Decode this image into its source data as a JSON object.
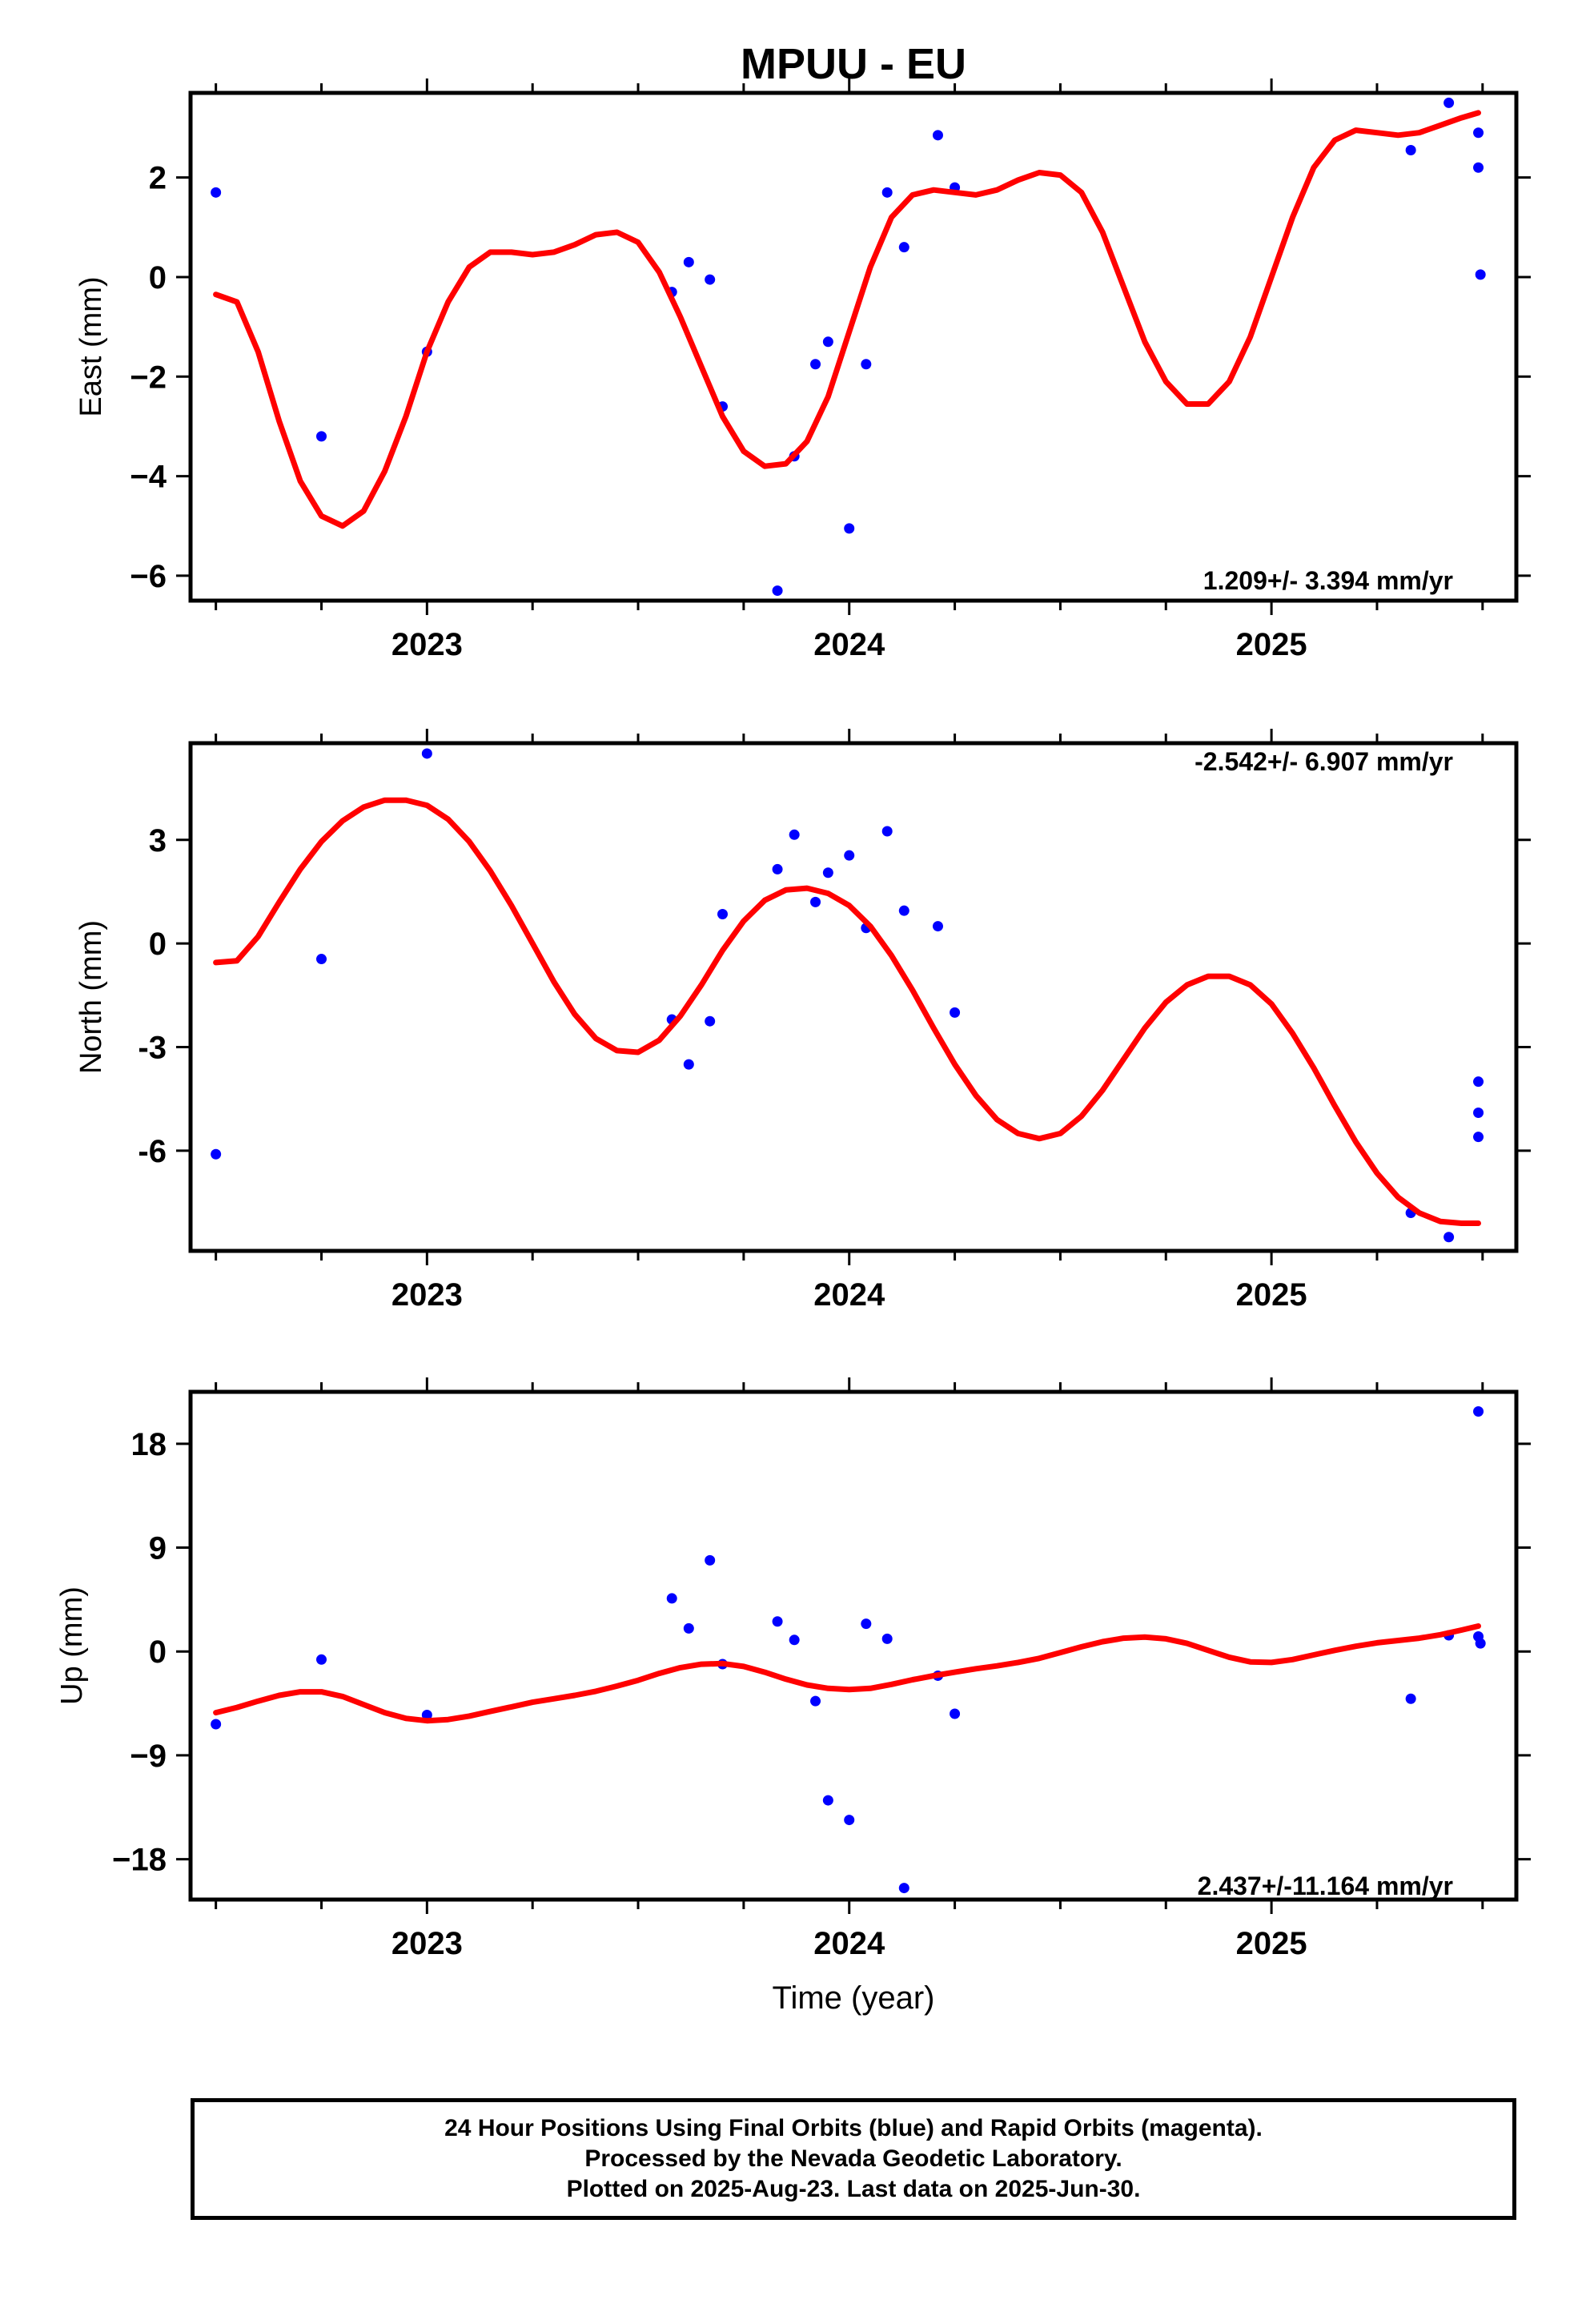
{
  "title": "MPUU - EU",
  "xlabel": "Time (year)",
  "colors": {
    "observed": "#0000ff",
    "model": "#ff0000",
    "frame": "#000000"
  },
  "footer": {
    "line1": "24 Hour Positions Using Final Orbits (blue) and Rapid Orbits (magenta).",
    "line2": "Processed by the Nevada Geodetic Laboratory.",
    "line3": "Plotted on 2025-Aug-23. Last data on 2025-Jun-30."
  },
  "chart_data": [
    {
      "type": "scatter",
      "panel": "east",
      "ylabel": "East (mm)",
      "rate_label": "1.209+/- 3.394 mm/yr",
      "rate_label_position": "bottom-right",
      "xlim": [
        2022.44,
        2025.58
      ],
      "ylim": [
        -6.5,
        3.7
      ],
      "xticks": [
        2023,
        2024,
        2025
      ],
      "xtick_labels": [
        "2023",
        "2024",
        "2025"
      ],
      "yticks": [
        -6,
        -4,
        -2,
        0,
        2
      ],
      "ytick_labels": [
        "−6",
        "−4",
        "−2",
        "0",
        "2"
      ],
      "points": [
        {
          "x": 2022.5,
          "y": 1.7
        },
        {
          "x": 2022.75,
          "y": -3.2
        },
        {
          "x": 2023.0,
          "y": -1.5
        },
        {
          "x": 2023.58,
          "y": -0.3
        },
        {
          "x": 2023.62,
          "y": 0.3
        },
        {
          "x": 2023.67,
          "y": -0.05
        },
        {
          "x": 2023.7,
          "y": -2.6
        },
        {
          "x": 2023.83,
          "y": -6.3
        },
        {
          "x": 2023.87,
          "y": -3.6
        },
        {
          "x": 2023.92,
          "y": -1.75
        },
        {
          "x": 2023.95,
          "y": -1.3
        },
        {
          "x": 2024.0,
          "y": -5.05
        },
        {
          "x": 2024.04,
          "y": -1.75
        },
        {
          "x": 2024.09,
          "y": 1.7
        },
        {
          "x": 2024.13,
          "y": 0.6
        },
        {
          "x": 2024.21,
          "y": 2.85
        },
        {
          "x": 2024.25,
          "y": 1.8
        },
        {
          "x": 2025.33,
          "y": 2.55
        },
        {
          "x": 2025.42,
          "y": 3.5
        },
        {
          "x": 2025.49,
          "y": 2.9
        },
        {
          "x": 2025.49,
          "y": 2.2
        },
        {
          "x": 2025.495,
          "y": 0.05
        }
      ],
      "model": [
        [
          2022.5,
          -0.35
        ],
        [
          2022.55,
          -0.5
        ],
        [
          2022.6,
          -1.5
        ],
        [
          2022.65,
          -2.9
        ],
        [
          2022.7,
          -4.1
        ],
        [
          2022.75,
          -4.8
        ],
        [
          2022.8,
          -5.0
        ],
        [
          2022.85,
          -4.7
        ],
        [
          2022.9,
          -3.9
        ],
        [
          2022.95,
          -2.8
        ],
        [
          2023.0,
          -1.5
        ],
        [
          2023.05,
          -0.5
        ],
        [
          2023.1,
          0.2
        ],
        [
          2023.15,
          0.5
        ],
        [
          2023.2,
          0.5
        ],
        [
          2023.25,
          0.45
        ],
        [
          2023.3,
          0.5
        ],
        [
          2023.35,
          0.65
        ],
        [
          2023.4,
          0.85
        ],
        [
          2023.45,
          0.9
        ],
        [
          2023.5,
          0.7
        ],
        [
          2023.55,
          0.1
        ],
        [
          2023.6,
          -0.8
        ],
        [
          2023.65,
          -1.8
        ],
        [
          2023.7,
          -2.8
        ],
        [
          2023.75,
          -3.5
        ],
        [
          2023.8,
          -3.8
        ],
        [
          2023.85,
          -3.75
        ],
        [
          2023.9,
          -3.3
        ],
        [
          2023.95,
          -2.4
        ],
        [
          2024.0,
          -1.1
        ],
        [
          2024.05,
          0.2
        ],
        [
          2024.1,
          1.2
        ],
        [
          2024.15,
          1.65
        ],
        [
          2024.2,
          1.75
        ],
        [
          2024.25,
          1.7
        ],
        [
          2024.3,
          1.65
        ],
        [
          2024.35,
          1.75
        ],
        [
          2024.4,
          1.95
        ],
        [
          2024.45,
          2.1
        ],
        [
          2024.5,
          2.05
        ],
        [
          2024.55,
          1.7
        ],
        [
          2024.6,
          0.9
        ],
        [
          2024.65,
          -0.2
        ],
        [
          2024.7,
          -1.3
        ],
        [
          2024.75,
          -2.1
        ],
        [
          2024.8,
          -2.55
        ],
        [
          2024.85,
          -2.55
        ],
        [
          2024.9,
          -2.1
        ],
        [
          2024.95,
          -1.2
        ],
        [
          2025.0,
          0.0
        ],
        [
          2025.05,
          1.2
        ],
        [
          2025.1,
          2.2
        ],
        [
          2025.15,
          2.75
        ],
        [
          2025.2,
          2.95
        ],
        [
          2025.25,
          2.9
        ],
        [
          2025.3,
          2.85
        ],
        [
          2025.35,
          2.9
        ],
        [
          2025.4,
          3.05
        ],
        [
          2025.45,
          3.2
        ],
        [
          2025.49,
          3.3
        ]
      ]
    },
    {
      "type": "scatter",
      "panel": "north",
      "ylabel": "North (mm)",
      "rate_label": "-2.542+/- 6.907 mm/yr",
      "rate_label_position": "top-right",
      "xlim": [
        2022.44,
        2025.58
      ],
      "ylim": [
        -8.9,
        5.8
      ],
      "xticks": [
        2023,
        2024,
        2025
      ],
      "xtick_labels": [
        "2023",
        "2024",
        "2025"
      ],
      "yticks": [
        -6,
        -3,
        0,
        3
      ],
      "ytick_labels": [
        "-6",
        "-3",
        "0",
        "3"
      ],
      "points": [
        {
          "x": 2022.5,
          "y": -6.1
        },
        {
          "x": 2022.75,
          "y": -0.45
        },
        {
          "x": 2023.0,
          "y": 5.5
        },
        {
          "x": 2023.58,
          "y": -2.2
        },
        {
          "x": 2023.62,
          "y": -3.5
        },
        {
          "x": 2023.67,
          "y": -2.25
        },
        {
          "x": 2023.7,
          "y": 0.85
        },
        {
          "x": 2023.83,
          "y": 2.15
        },
        {
          "x": 2023.87,
          "y": 3.15
        },
        {
          "x": 2023.92,
          "y": 1.2
        },
        {
          "x": 2023.95,
          "y": 2.05
        },
        {
          "x": 2024.0,
          "y": 2.55
        },
        {
          "x": 2024.04,
          "y": 0.45
        },
        {
          "x": 2024.09,
          "y": 3.25
        },
        {
          "x": 2024.13,
          "y": 0.95
        },
        {
          "x": 2024.21,
          "y": 0.5
        },
        {
          "x": 2024.25,
          "y": -2.0
        },
        {
          "x": 2025.33,
          "y": -7.8
        },
        {
          "x": 2025.42,
          "y": -8.5
        },
        {
          "x": 2025.49,
          "y": -4.0
        },
        {
          "x": 2025.49,
          "y": -4.9
        },
        {
          "x": 2025.49,
          "y": -5.6
        }
      ],
      "model": [
        [
          2022.5,
          -0.55
        ],
        [
          2022.55,
          -0.5
        ],
        [
          2022.6,
          0.2
        ],
        [
          2022.65,
          1.2
        ],
        [
          2022.7,
          2.15
        ],
        [
          2022.75,
          2.95
        ],
        [
          2022.8,
          3.55
        ],
        [
          2022.85,
          3.95
        ],
        [
          2022.9,
          4.15
        ],
        [
          2022.95,
          4.15
        ],
        [
          2023.0,
          4.0
        ],
        [
          2023.05,
          3.6
        ],
        [
          2023.1,
          2.95
        ],
        [
          2023.15,
          2.1
        ],
        [
          2023.2,
          1.1
        ],
        [
          2023.25,
          0.0
        ],
        [
          2023.3,
          -1.1
        ],
        [
          2023.35,
          -2.05
        ],
        [
          2023.4,
          -2.75
        ],
        [
          2023.45,
          -3.1
        ],
        [
          2023.5,
          -3.15
        ],
        [
          2023.55,
          -2.8
        ],
        [
          2023.6,
          -2.1
        ],
        [
          2023.65,
          -1.2
        ],
        [
          2023.7,
          -0.2
        ],
        [
          2023.75,
          0.65
        ],
        [
          2023.8,
          1.25
        ],
        [
          2023.85,
          1.55
        ],
        [
          2023.9,
          1.6
        ],
        [
          2023.95,
          1.45
        ],
        [
          2024.0,
          1.1
        ],
        [
          2024.05,
          0.5
        ],
        [
          2024.1,
          -0.35
        ],
        [
          2024.15,
          -1.35
        ],
        [
          2024.2,
          -2.45
        ],
        [
          2024.25,
          -3.5
        ],
        [
          2024.3,
          -4.4
        ],
        [
          2024.35,
          -5.1
        ],
        [
          2024.4,
          -5.5
        ],
        [
          2024.45,
          -5.65
        ],
        [
          2024.5,
          -5.5
        ],
        [
          2024.55,
          -5.0
        ],
        [
          2024.6,
          -4.25
        ],
        [
          2024.65,
          -3.35
        ],
        [
          2024.7,
          -2.45
        ],
        [
          2024.75,
          -1.7
        ],
        [
          2024.8,
          -1.2
        ],
        [
          2024.85,
          -0.95
        ],
        [
          2024.9,
          -0.95
        ],
        [
          2024.95,
          -1.2
        ],
        [
          2025.0,
          -1.75
        ],
        [
          2025.05,
          -2.6
        ],
        [
          2025.1,
          -3.6
        ],
        [
          2025.15,
          -4.7
        ],
        [
          2025.2,
          -5.75
        ],
        [
          2025.25,
          -6.65
        ],
        [
          2025.3,
          -7.35
        ],
        [
          2025.35,
          -7.8
        ],
        [
          2025.4,
          -8.05
        ],
        [
          2025.45,
          -8.1
        ],
        [
          2025.49,
          -8.1
        ]
      ]
    },
    {
      "type": "scatter",
      "panel": "up",
      "ylabel": "Up (mm)",
      "rate_label": "2.437+/-11.164 mm/yr",
      "rate_label_position": "bottom-right",
      "xlim": [
        2022.44,
        2025.58
      ],
      "ylim": [
        -21.5,
        22.5
      ],
      "xticks": [
        2023,
        2024,
        2025
      ],
      "xtick_labels": [
        "2023",
        "2024",
        "2025"
      ],
      "yticks": [
        -18,
        -9,
        0,
        9,
        18
      ],
      "ytick_labels": [
        "−18",
        "−9",
        "0",
        "9",
        "18"
      ],
      "points": [
        {
          "x": 2022.5,
          "y": -6.3
        },
        {
          "x": 2022.75,
          "y": -0.7
        },
        {
          "x": 2023.0,
          "y": -5.5
        },
        {
          "x": 2023.58,
          "y": 4.6
        },
        {
          "x": 2023.62,
          "y": 2.0
        },
        {
          "x": 2023.67,
          "y": 7.9
        },
        {
          "x": 2023.7,
          "y": -1.1
        },
        {
          "x": 2023.83,
          "y": 2.6
        },
        {
          "x": 2023.87,
          "y": 1.0
        },
        {
          "x": 2023.92,
          "y": -4.3
        },
        {
          "x": 2023.95,
          "y": -12.9
        },
        {
          "x": 2024.0,
          "y": -14.6
        },
        {
          "x": 2024.04,
          "y": 2.4
        },
        {
          "x": 2024.09,
          "y": 1.1
        },
        {
          "x": 2024.13,
          "y": -20.5
        },
        {
          "x": 2024.21,
          "y": -2.1
        },
        {
          "x": 2024.25,
          "y": -5.4
        },
        {
          "x": 2025.33,
          "y": -4.1
        },
        {
          "x": 2025.42,
          "y": 1.4
        },
        {
          "x": 2025.49,
          "y": 20.8
        },
        {
          "x": 2025.49,
          "y": 1.3
        },
        {
          "x": 2025.495,
          "y": 0.7
        }
      ],
      "model": [
        [
          2022.5,
          -5.3
        ],
        [
          2022.55,
          -4.85
        ],
        [
          2022.6,
          -4.3
        ],
        [
          2022.65,
          -3.8
        ],
        [
          2022.7,
          -3.5
        ],
        [
          2022.75,
          -3.5
        ],
        [
          2022.8,
          -3.9
        ],
        [
          2022.85,
          -4.6
        ],
        [
          2022.9,
          -5.3
        ],
        [
          2022.95,
          -5.8
        ],
        [
          2023.0,
          -6.0
        ],
        [
          2023.05,
          -5.9
        ],
        [
          2023.1,
          -5.6
        ],
        [
          2023.15,
          -5.2
        ],
        [
          2023.2,
          -4.8
        ],
        [
          2023.25,
          -4.4
        ],
        [
          2023.3,
          -4.1
        ],
        [
          2023.35,
          -3.8
        ],
        [
          2023.4,
          -3.45
        ],
        [
          2023.45,
          -3.0
        ],
        [
          2023.5,
          -2.5
        ],
        [
          2023.55,
          -1.9
        ],
        [
          2023.6,
          -1.4
        ],
        [
          2023.65,
          -1.1
        ],
        [
          2023.7,
          -1.05
        ],
        [
          2023.75,
          -1.3
        ],
        [
          2023.8,
          -1.8
        ],
        [
          2023.85,
          -2.4
        ],
        [
          2023.9,
          -2.9
        ],
        [
          2023.95,
          -3.2
        ],
        [
          2024.0,
          -3.3
        ],
        [
          2024.05,
          -3.2
        ],
        [
          2024.1,
          -2.85
        ],
        [
          2024.15,
          -2.45
        ],
        [
          2024.2,
          -2.1
        ],
        [
          2024.25,
          -1.8
        ],
        [
          2024.3,
          -1.5
        ],
        [
          2024.35,
          -1.25
        ],
        [
          2024.4,
          -0.95
        ],
        [
          2024.45,
          -0.6
        ],
        [
          2024.5,
          -0.1
        ],
        [
          2024.55,
          0.4
        ],
        [
          2024.6,
          0.85
        ],
        [
          2024.65,
          1.15
        ],
        [
          2024.7,
          1.25
        ],
        [
          2024.75,
          1.1
        ],
        [
          2024.8,
          0.7
        ],
        [
          2024.85,
          0.1
        ],
        [
          2024.9,
          -0.5
        ],
        [
          2024.95,
          -0.9
        ],
        [
          2025.0,
          -0.95
        ],
        [
          2025.05,
          -0.7
        ],
        [
          2025.1,
          -0.3
        ],
        [
          2025.15,
          0.1
        ],
        [
          2025.2,
          0.45
        ],
        [
          2025.25,
          0.75
        ],
        [
          2025.3,
          0.95
        ],
        [
          2025.35,
          1.15
        ],
        [
          2025.4,
          1.45
        ],
        [
          2025.45,
          1.85
        ],
        [
          2025.49,
          2.2
        ]
      ]
    }
  ]
}
